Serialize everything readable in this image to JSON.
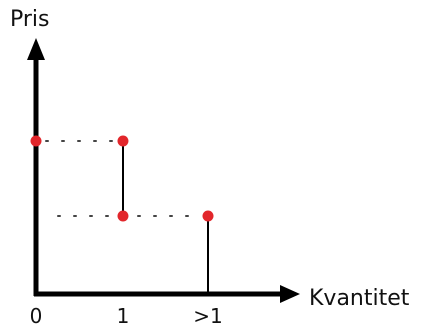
{
  "diagram": {
    "y_axis_label": "Pris",
    "x_axis_label": "Kvantitet",
    "x_ticks": [
      "0",
      "1",
      ">1"
    ],
    "colors": {
      "axis": "#000000",
      "point": "#e2262b",
      "dots": "#444444"
    }
  }
}
